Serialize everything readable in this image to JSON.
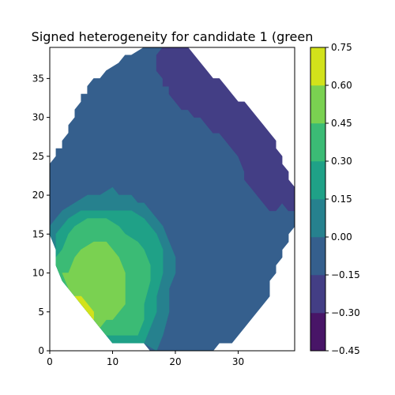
{
  "chart_data": {
    "type": "heatmap",
    "subtype": "filled-contour",
    "title": "Signed heterogeneity for candidate 1 (green",
    "xlabel": "",
    "ylabel": "",
    "xlim": [
      0,
      39
    ],
    "ylim": [
      0,
      39
    ],
    "x_ticks": [
      0,
      10,
      20,
      30
    ],
    "y_ticks": [
      0,
      5,
      10,
      15,
      20,
      25,
      30,
      35
    ],
    "grid": false,
    "colorbar": {
      "position": "right",
      "levels": [
        -0.45,
        -0.3,
        -0.15,
        0.0,
        0.15,
        0.3,
        0.45,
        0.6,
        0.75
      ],
      "tick_labels": [
        "−0.45",
        "−0.30",
        "−0.15",
        "0.00",
        "0.15",
        "0.30",
        "0.45",
        "0.60",
        "0.75"
      ],
      "colors": [
        "#481567",
        "#433e85",
        "#355f8d",
        "#26818e",
        "#1fa187",
        "#3bbb75",
        "#7ad151",
        "#d2e21b"
      ]
    },
    "regions": [
      {
        "level_index": 2,
        "range": [
          -0.15,
          0.0
        ],
        "points": [
          [
            0,
            16
          ],
          [
            0,
            24
          ],
          [
            1,
            25
          ],
          [
            1,
            26
          ],
          [
            2,
            26
          ],
          [
            2,
            27
          ],
          [
            3,
            28
          ],
          [
            3,
            29
          ],
          [
            4,
            30
          ],
          [
            4,
            31
          ],
          [
            5,
            32
          ],
          [
            5,
            33
          ],
          [
            6,
            33
          ],
          [
            6,
            34
          ],
          [
            7,
            35
          ],
          [
            8,
            35
          ],
          [
            9,
            36
          ],
          [
            11,
            37
          ],
          [
            12,
            38
          ],
          [
            13,
            38
          ],
          [
            15,
            39
          ],
          [
            18,
            39
          ],
          [
            17,
            38
          ],
          [
            17,
            36
          ],
          [
            18,
            35
          ],
          [
            18,
            34
          ],
          [
            19,
            34
          ],
          [
            19,
            33
          ],
          [
            20,
            32
          ],
          [
            21,
            31
          ],
          [
            22,
            31
          ],
          [
            23,
            30
          ],
          [
            24,
            30
          ],
          [
            25,
            29
          ],
          [
            26,
            28
          ],
          [
            27,
            28
          ],
          [
            28,
            27
          ],
          [
            29,
            26
          ],
          [
            30,
            25
          ],
          [
            31,
            23
          ],
          [
            31,
            22
          ],
          [
            32,
            21
          ],
          [
            33,
            20
          ],
          [
            34,
            19
          ],
          [
            35,
            18
          ],
          [
            36,
            18
          ],
          [
            37,
            19
          ],
          [
            38,
            18
          ],
          [
            39,
            18
          ],
          [
            39,
            16
          ],
          [
            38,
            15
          ],
          [
            38,
            14
          ],
          [
            37,
            13
          ],
          [
            37,
            12
          ],
          [
            36,
            11
          ],
          [
            36,
            10
          ],
          [
            35,
            9
          ],
          [
            35,
            7
          ],
          [
            34,
            6
          ],
          [
            33,
            5
          ],
          [
            32,
            4
          ],
          [
            31,
            3
          ],
          [
            30,
            2
          ],
          [
            29,
            1
          ],
          [
            27,
            1
          ],
          [
            26,
            0
          ],
          [
            16,
            0
          ],
          [
            15,
            1
          ],
          [
            10,
            1
          ],
          [
            9,
            2
          ],
          [
            8,
            3
          ],
          [
            7,
            4
          ],
          [
            6,
            5
          ],
          [
            5,
            6
          ],
          [
            4,
            7
          ],
          [
            3,
            8
          ],
          [
            2,
            9
          ],
          [
            1,
            11
          ],
          [
            1,
            13
          ],
          [
            0,
            15
          ]
        ]
      },
      {
        "level_index": 1,
        "range": [
          -0.3,
          -0.15
        ],
        "points": [
          [
            18,
            39
          ],
          [
            22,
            39
          ],
          [
            23,
            38
          ],
          [
            24,
            37
          ],
          [
            25,
            36
          ],
          [
            26,
            35
          ],
          [
            27,
            35
          ],
          [
            28,
            34
          ],
          [
            29,
            33
          ],
          [
            30,
            32
          ],
          [
            31,
            32
          ],
          [
            32,
            31
          ],
          [
            33,
            30
          ],
          [
            34,
            29
          ],
          [
            35,
            28
          ],
          [
            36,
            27
          ],
          [
            36,
            26
          ],
          [
            37,
            25
          ],
          [
            37,
            24
          ],
          [
            38,
            23
          ],
          [
            38,
            22
          ],
          [
            39,
            21
          ],
          [
            39,
            18
          ],
          [
            38,
            18
          ],
          [
            37,
            19
          ],
          [
            36,
            18
          ],
          [
            35,
            18
          ],
          [
            34,
            19
          ],
          [
            33,
            20
          ],
          [
            32,
            21
          ],
          [
            31,
            22
          ],
          [
            31,
            23
          ],
          [
            30,
            25
          ],
          [
            29,
            26
          ],
          [
            28,
            27
          ],
          [
            27,
            28
          ],
          [
            26,
            28
          ],
          [
            25,
            29
          ],
          [
            24,
            30
          ],
          [
            23,
            30
          ],
          [
            22,
            31
          ],
          [
            21,
            31
          ],
          [
            20,
            32
          ],
          [
            19,
            33
          ],
          [
            19,
            34
          ],
          [
            18,
            34
          ],
          [
            18,
            35
          ],
          [
            17,
            36
          ],
          [
            17,
            38
          ]
        ]
      },
      {
        "level_index": 3,
        "range": [
          0.0,
          0.15
        ],
        "points": [
          [
            0,
            16
          ],
          [
            1,
            17
          ],
          [
            2,
            18
          ],
          [
            4,
            19
          ],
          [
            6,
            20
          ],
          [
            8,
            20
          ],
          [
            10,
            21
          ],
          [
            11,
            20
          ],
          [
            13,
            20
          ],
          [
            14,
            19
          ],
          [
            15,
            19
          ],
          [
            16,
            18
          ],
          [
            17,
            17
          ],
          [
            18,
            16
          ],
          [
            19,
            14
          ],
          [
            20,
            12
          ],
          [
            20,
            10
          ],
          [
            19,
            8
          ],
          [
            19,
            5
          ],
          [
            18,
            2
          ],
          [
            17,
            0
          ],
          [
            15,
            1
          ],
          [
            10,
            1
          ],
          [
            9,
            2
          ],
          [
            8,
            3
          ],
          [
            7,
            4
          ],
          [
            6,
            5
          ],
          [
            5,
            6
          ],
          [
            4,
            7
          ],
          [
            3,
            8
          ],
          [
            2,
            9
          ],
          [
            1,
            11
          ],
          [
            1,
            13
          ],
          [
            0,
            15
          ]
        ]
      },
      {
        "level_index": 4,
        "range": [
          0.15,
          0.3
        ],
        "points": [
          [
            1,
            15
          ],
          [
            2,
            16
          ],
          [
            3,
            17
          ],
          [
            5,
            18
          ],
          [
            7,
            18
          ],
          [
            9,
            18
          ],
          [
            11,
            18
          ],
          [
            13,
            18
          ],
          [
            15,
            17
          ],
          [
            16,
            16
          ],
          [
            17,
            15
          ],
          [
            18,
            13
          ],
          [
            18,
            10
          ],
          [
            17,
            7
          ],
          [
            17,
            5
          ],
          [
            16,
            3
          ],
          [
            15,
            1
          ],
          [
            13,
            1
          ],
          [
            11,
            1
          ],
          [
            10,
            1
          ],
          [
            9,
            2
          ],
          [
            8,
            3
          ],
          [
            7,
            4
          ],
          [
            6,
            5
          ],
          [
            5,
            6
          ],
          [
            4,
            7
          ],
          [
            3,
            8
          ],
          [
            2,
            9
          ],
          [
            1,
            11
          ],
          [
            1,
            13
          ]
        ]
      },
      {
        "level_index": 5,
        "range": [
          0.3,
          0.45
        ],
        "points": [
          [
            1,
            12
          ],
          [
            2,
            13
          ],
          [
            3,
            15
          ],
          [
            4,
            16
          ],
          [
            6,
            17
          ],
          [
            9,
            17
          ],
          [
            11,
            16
          ],
          [
            12,
            15
          ],
          [
            14,
            14
          ],
          [
            15,
            13
          ],
          [
            16,
            11
          ],
          [
            16,
            9
          ],
          [
            15,
            6
          ],
          [
            15,
            4
          ],
          [
            14,
            2
          ],
          [
            12,
            2
          ],
          [
            10,
            2
          ],
          [
            9,
            2
          ],
          [
            8,
            3
          ],
          [
            7,
            4
          ],
          [
            6,
            5
          ],
          [
            5,
            6
          ],
          [
            4,
            7
          ],
          [
            3,
            8
          ],
          [
            2,
            9
          ],
          [
            1,
            11
          ]
        ]
      },
      {
        "level_index": 6,
        "range": [
          0.45,
          0.6
        ],
        "points": [
          [
            3,
            10
          ],
          [
            4,
            12
          ],
          [
            5,
            13
          ],
          [
            7,
            14
          ],
          [
            9,
            14
          ],
          [
            10,
            13
          ],
          [
            11,
            12
          ],
          [
            12,
            10
          ],
          [
            12,
            8
          ],
          [
            12,
            6
          ],
          [
            11,
            5
          ],
          [
            10,
            4
          ],
          [
            9,
            4
          ],
          [
            8,
            3
          ],
          [
            7,
            4
          ],
          [
            6,
            5
          ],
          [
            5,
            6
          ],
          [
            4,
            7
          ],
          [
            3,
            8
          ],
          [
            2,
            10
          ]
        ]
      },
      {
        "level_index": 7,
        "range": [
          0.6,
          0.75
        ],
        "points": [
          [
            4,
            7
          ],
          [
            5,
            7
          ],
          [
            6,
            6
          ],
          [
            7,
            5
          ],
          [
            7,
            4
          ],
          [
            6,
            5
          ],
          [
            5,
            6
          ]
        ]
      }
    ]
  }
}
